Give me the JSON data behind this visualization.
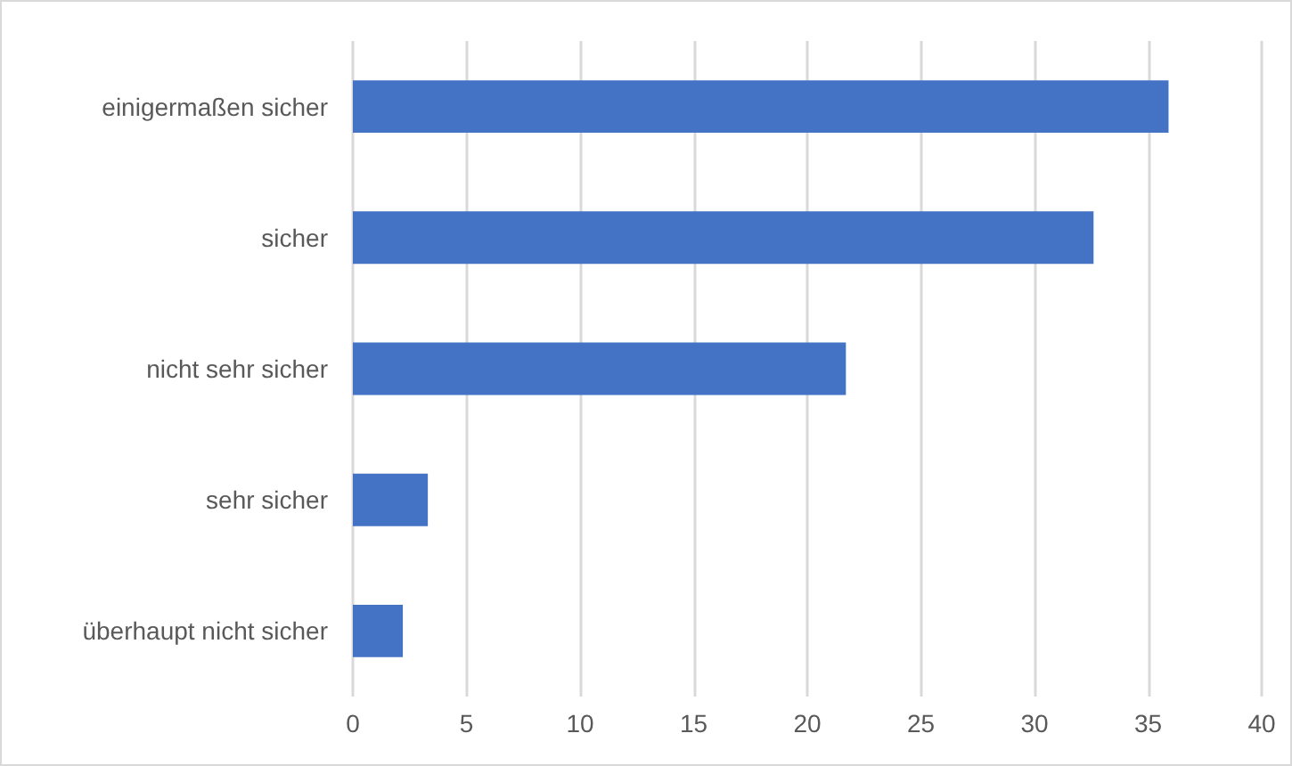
{
  "chart_data": {
    "type": "bar",
    "orientation": "horizontal",
    "categories": [
      "einigermaßen sicher",
      "sicher",
      "nicht sehr sicher",
      "sehr sicher",
      "überhaupt nicht sicher"
    ],
    "values": [
      35.9,
      32.6,
      21.7,
      3.3,
      2.2
    ],
    "color": "#4472c4",
    "xlim": [
      0,
      40
    ],
    "xticks": [
      0,
      5,
      10,
      15,
      20,
      25,
      30,
      35,
      40
    ],
    "grid": "x"
  }
}
